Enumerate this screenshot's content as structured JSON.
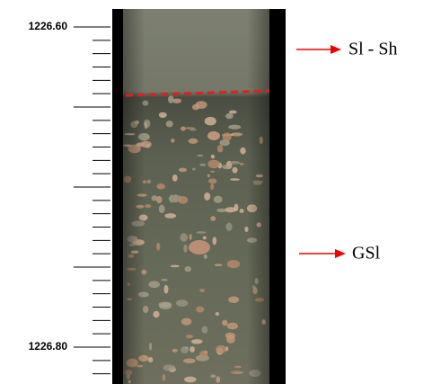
{
  "depth_labels": [
    "1226.60",
    "1226.80"
  ],
  "annotations": [
    "Sl - Sh",
    "GSl"
  ]
}
